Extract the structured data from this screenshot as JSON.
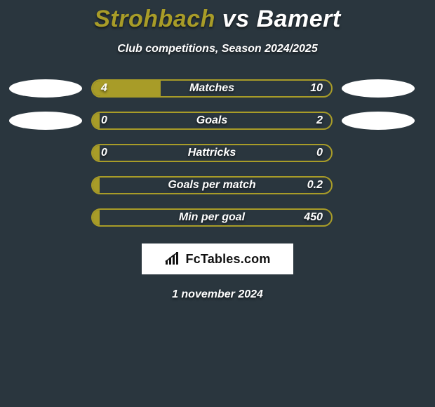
{
  "background_color": "#2a363e",
  "text_color": "#ffffff",
  "title": {
    "left": "Strohbach",
    "vs": " vs ",
    "right": "Bamert",
    "left_color": "#a89c28",
    "right_color": "#ffffff",
    "fontsize": 34
  },
  "subtitle": {
    "text": "Club competitions, Season 2024/2025",
    "fontsize": 16
  },
  "ellipse_color": "#ffffff",
  "bar_color_left": "#a89c28",
  "bar_border_color": "#a89c28",
  "track_bg": "transparent",
  "label_fontsize": 16,
  "value_fontsize": 16,
  "rows": [
    {
      "label": "Matches",
      "left": "4",
      "right": "10",
      "fill_pct": 28.6,
      "show_ellipses": true
    },
    {
      "label": "Goals",
      "left": "0",
      "right": "2",
      "fill_pct": 3,
      "show_ellipses": true
    },
    {
      "label": "Hattricks",
      "left": "0",
      "right": "0",
      "fill_pct": 3,
      "show_ellipses": false
    },
    {
      "label": "Goals per match",
      "left": "",
      "right": "0.2",
      "fill_pct": 3,
      "show_ellipses": false
    },
    {
      "label": "Min per goal",
      "left": "",
      "right": "450",
      "fill_pct": 3,
      "show_ellipses": false
    }
  ],
  "brand": {
    "text": "FcTables.com"
  },
  "date": "1 november 2024"
}
